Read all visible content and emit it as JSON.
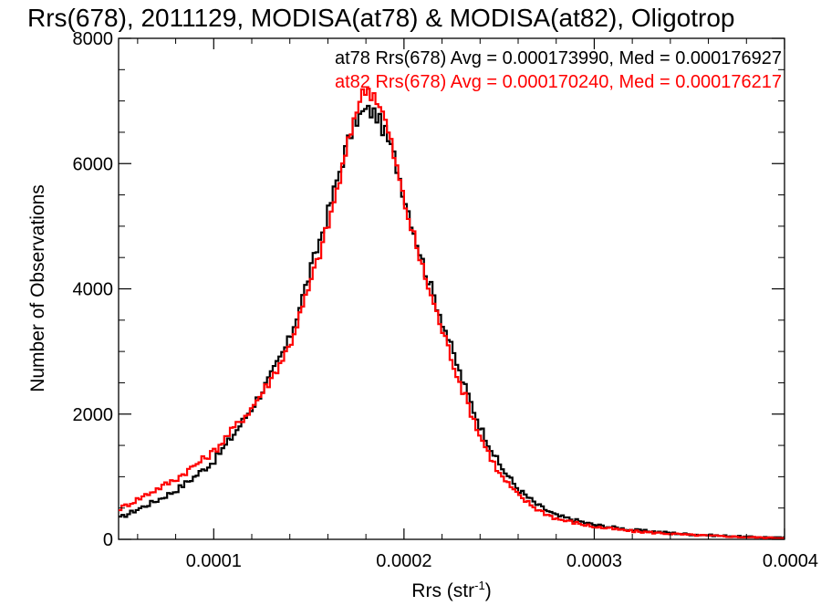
{
  "chart_data": {
    "type": "line",
    "title": "Rrs(678), 2011129, MODISA(at78) & MODISA(at82), Oligotrop",
    "xlabel_main": "Rrs (str",
    "xlabel_sup": "-1",
    "xlabel_end": ")",
    "ylabel": "Number of Observations",
    "xlim": [
      5e-05,
      0.0004
    ],
    "ylim": [
      0,
      8000
    ],
    "x_ticks": [
      {
        "value": 0.0001,
        "label": "0.0001"
      },
      {
        "value": 0.0002,
        "label": "0.0002"
      },
      {
        "value": 0.0003,
        "label": "0.0003"
      },
      {
        "value": 0.0004,
        "label": "0.0004"
      }
    ],
    "y_ticks": [
      {
        "value": 0,
        "label": "0"
      },
      {
        "value": 2000,
        "label": "2000"
      },
      {
        "value": 4000,
        "label": "4000"
      },
      {
        "value": 6000,
        "label": "6000"
      },
      {
        "value": 8000,
        "label": "8000"
      }
    ],
    "series": [
      {
        "name": "at78",
        "color": "#000000",
        "legend": "at78 Rrs(678) Avg = 0.000173990, Med = 0.000176927",
        "x": [
          5e-05,
          6e-05,
          7e-05,
          8e-05,
          9e-05,
          0.0001,
          0.00011,
          0.00012,
          0.00013,
          0.00014,
          0.00015,
          0.00016,
          0.00017,
          0.000175,
          0.00018,
          0.000185,
          0.00019,
          0.000195,
          0.0002,
          0.00021,
          0.00022,
          0.00023,
          0.00024,
          0.00025,
          0.00026,
          0.00027,
          0.00028,
          0.0003,
          0.00032,
          0.00035,
          0.00038,
          0.0004
        ],
        "y": [
          330,
          480,
          620,
          780,
          1000,
          1250,
          1650,
          2100,
          2600,
          3200,
          4200,
          5200,
          6300,
          6700,
          6850,
          6800,
          6500,
          6100,
          5500,
          4400,
          3500,
          2600,
          1800,
          1200,
          800,
          550,
          380,
          230,
          150,
          80,
          40,
          25
        ]
      },
      {
        "name": "at82",
        "color": "#ff0000",
        "legend": "at82 Rrs(678) Avg = 0.000170240, Med = 0.000176217",
        "x": [
          5e-05,
          6e-05,
          7e-05,
          8e-05,
          9e-05,
          0.0001,
          0.00011,
          0.00012,
          0.00013,
          0.00014,
          0.00015,
          0.00016,
          0.00017,
          0.000175,
          0.00018,
          0.000185,
          0.00019,
          0.000195,
          0.0002,
          0.00021,
          0.00022,
          0.00023,
          0.00024,
          0.00025,
          0.00026,
          0.00027,
          0.00028,
          0.0003,
          0.00032,
          0.00035,
          0.00038,
          0.0004
        ],
        "y": [
          480,
          640,
          800,
          960,
          1180,
          1400,
          1750,
          2100,
          2550,
          3100,
          4000,
          5000,
          6200,
          6900,
          7200,
          7100,
          6700,
          6100,
          5400,
          4300,
          3350,
          2450,
          1650,
          1050,
          700,
          480,
          330,
          200,
          130,
          70,
          35,
          20
        ]
      }
    ]
  }
}
